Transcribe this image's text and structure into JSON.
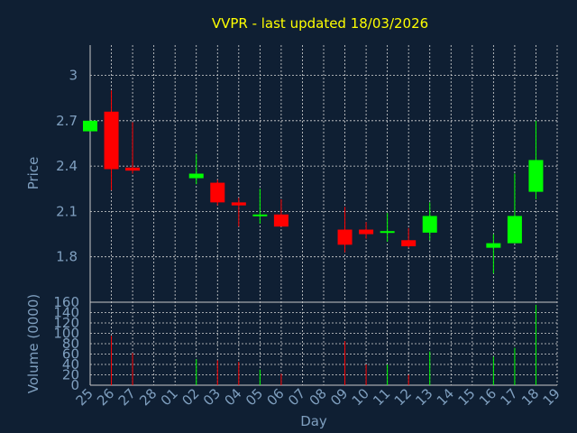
{
  "chart_data": {
    "type": "candlestick",
    "title": "VVPR - last updated 18/03/2026",
    "xlabel": "Day",
    "colors": {
      "background": "#0f1f33",
      "plot_background": "#0f1f33",
      "grid": "#d8d8d8",
      "title": "#ffff00",
      "text": "#7f9fbf",
      "up": "#00ff00",
      "down": "#ff0000",
      "spine": "#c8c8c8"
    },
    "x_tick_labels": [
      "25",
      "26",
      "27",
      "28",
      "01",
      "02",
      "03",
      "04",
      "05",
      "06",
      "07",
      "08",
      "09",
      "10",
      "11",
      "12",
      "13",
      "14",
      "15",
      "16",
      "17",
      "18",
      "19"
    ],
    "price_panel": {
      "ylabel": "Price",
      "ylim": [
        1.5,
        3.2
      ],
      "yticks": [
        "3",
        "2.7",
        "2.4",
        "2.1",
        "1.8"
      ],
      "ytick_values": [
        3.0,
        2.7,
        2.4,
        2.1,
        1.8
      ],
      "candles": [
        {
          "day": "25",
          "open": 2.63,
          "high": 2.7,
          "low": 2.63,
          "close": 2.7
        },
        {
          "day": "26",
          "open": 2.76,
          "high": 2.9,
          "low": 2.24,
          "close": 2.38
        },
        {
          "day": "27",
          "open": 2.39,
          "high": 2.69,
          "low": 2.35,
          "close": 2.37
        },
        {
          "day": "02",
          "open": 2.32,
          "high": 2.48,
          "low": 2.28,
          "close": 2.35
        },
        {
          "day": "03",
          "open": 2.29,
          "high": 2.31,
          "low": 2.14,
          "close": 2.16
        },
        {
          "day": "04",
          "open": 2.16,
          "high": 2.19,
          "low": 2.0,
          "close": 2.14
        },
        {
          "day": "05",
          "open": 2.07,
          "high": 2.25,
          "low": 2.02,
          "close": 2.08
        },
        {
          "day": "06",
          "open": 2.08,
          "high": 2.18,
          "low": 2.0,
          "close": 2.0
        },
        {
          "day": "09",
          "open": 1.98,
          "high": 2.13,
          "low": 1.83,
          "close": 1.88
        },
        {
          "day": "10",
          "open": 1.98,
          "high": 2.03,
          "low": 1.92,
          "close": 1.95
        },
        {
          "day": "11",
          "open": 1.96,
          "high": 2.09,
          "low": 1.9,
          "close": 1.97
        },
        {
          "day": "12",
          "open": 1.91,
          "high": 1.99,
          "low": 1.86,
          "close": 1.87
        },
        {
          "day": "13",
          "open": 1.96,
          "high": 2.16,
          "low": 1.91,
          "close": 2.07
        },
        {
          "day": "16",
          "open": 1.86,
          "high": 1.95,
          "low": 1.69,
          "close": 1.89
        },
        {
          "day": "17",
          "open": 1.89,
          "high": 2.35,
          "low": 1.89,
          "close": 2.07
        },
        {
          "day": "18",
          "open": 2.23,
          "high": 2.7,
          "low": 2.18,
          "close": 2.44
        }
      ]
    },
    "volume_panel": {
      "ylabel": "Volume (0000)",
      "ylim": [
        0,
        160
      ],
      "yticks": [
        "160",
        "140",
        "120",
        "100",
        "80",
        "60",
        "40",
        "20",
        "0"
      ],
      "ytick_values": [
        160,
        140,
        120,
        100,
        80,
        60,
        40,
        20,
        0
      ],
      "bars": [
        {
          "day": "26",
          "value": 95,
          "direction": "down"
        },
        {
          "day": "27",
          "value": 62,
          "direction": "down"
        },
        {
          "day": "02",
          "value": 50,
          "direction": "up"
        },
        {
          "day": "03",
          "value": 48,
          "direction": "down"
        },
        {
          "day": "04",
          "value": 45,
          "direction": "down"
        },
        {
          "day": "05",
          "value": 30,
          "direction": "up"
        },
        {
          "day": "06",
          "value": 22,
          "direction": "down"
        },
        {
          "day": "09",
          "value": 85,
          "direction": "down"
        },
        {
          "day": "10",
          "value": 40,
          "direction": "down"
        },
        {
          "day": "11",
          "value": 40,
          "direction": "up"
        },
        {
          "day": "12",
          "value": 20,
          "direction": "down"
        },
        {
          "day": "13",
          "value": 65,
          "direction": "up"
        },
        {
          "day": "16",
          "value": 55,
          "direction": "up"
        },
        {
          "day": "17",
          "value": 72,
          "direction": "up"
        },
        {
          "day": "18",
          "value": 155,
          "direction": "up"
        }
      ]
    },
    "grid": true
  }
}
